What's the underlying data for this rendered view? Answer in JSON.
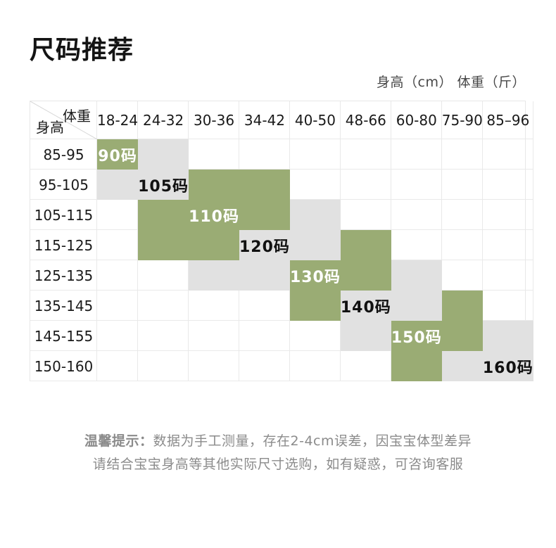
{
  "title": "尺码推荐",
  "units_label": "身高（cm） 体重（斤）",
  "chart_data": {
    "type": "table",
    "title": "尺码推荐",
    "corner_top": "体重",
    "corner_bottom": "身高",
    "weight_columns": [
      "18-24",
      "24-32",
      "30-36",
      "34-42",
      "40-50",
      "48-66",
      "60-80",
      "75-90",
      "85–96"
    ],
    "rows": [
      {
        "height": "85-95",
        "cells": [
          "green:90码",
          "gray",
          "",
          "",
          "",
          "",
          "",
          "",
          ""
        ]
      },
      {
        "height": "95-105",
        "cells": [
          "gray",
          "gray:105码",
          "green",
          "green",
          "",
          "",
          "",
          "",
          ""
        ]
      },
      {
        "height": "105-115",
        "cells": [
          "",
          "green",
          "green:110码",
          "green",
          "gray",
          "",
          "",
          "",
          ""
        ]
      },
      {
        "height": "115-125",
        "cells": [
          "",
          "green",
          "green",
          "gray:120码",
          "gray",
          "green",
          "",
          "",
          ""
        ]
      },
      {
        "height": "125-135",
        "cells": [
          "",
          "",
          "gray",
          "gray",
          "green:130码",
          "green",
          "gray",
          "",
          ""
        ]
      },
      {
        "height": "135-145",
        "cells": [
          "",
          "",
          "",
          "",
          "green",
          "gray:140码",
          "gray",
          "green",
          ""
        ]
      },
      {
        "height": "145-155",
        "cells": [
          "",
          "",
          "",
          "",
          "",
          "gray",
          "green:150码",
          "green",
          "gray"
        ]
      },
      {
        "height": "150-160",
        "cells": [
          "",
          "",
          "",
          "",
          "",
          "",
          "green",
          "gray",
          "gray:160码"
        ]
      }
    ],
    "colors": {
      "green": "#9aac74",
      "gray": "#e1e1e1"
    }
  },
  "note": {
    "prefix": "温馨提示：",
    "line1": "数据为手工测量，存在2-4cm误差，因宝宝体型差异",
    "line2": "请结合宝宝身高等其他实际尺寸选购，如有疑惑，可咨询客服"
  }
}
